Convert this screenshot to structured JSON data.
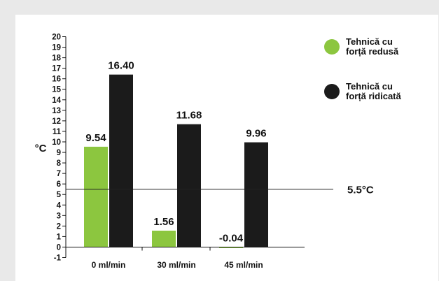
{
  "chart_data": {
    "type": "bar",
    "categories": [
      "0 ml/min",
      "30 ml/min",
      "45 ml/min"
    ],
    "series": [
      {
        "name": "Tehnică cu forță redusă",
        "legend_lines": [
          "Tehnică cu",
          "forță redusă"
        ],
        "values": [
          9.54,
          1.56,
          -0.04
        ],
        "value_labels": [
          "9.54",
          "1.56",
          "-0.04"
        ],
        "color": "#8cc63f"
      },
      {
        "name": "Tehnică cu forță ridicată",
        "legend_lines": [
          "Tehnică cu",
          "forță ridicată"
        ],
        "values": [
          16.4,
          11.68,
          9.96
        ],
        "value_labels": [
          "16.40",
          "11.68",
          "9.96"
        ],
        "color": "#1b1b1b"
      }
    ],
    "ylabel": "°C",
    "ylim": [
      -1,
      20
    ],
    "yticks": [
      -1,
      0,
      1,
      2,
      3,
      4,
      5,
      6,
      7,
      8,
      9,
      10,
      11,
      12,
      13,
      14,
      15,
      16,
      17,
      18,
      19,
      20
    ],
    "reference_line": {
      "value": 5.5,
      "label": "5.5°C"
    },
    "legend_position": "top-right",
    "grid": false
  }
}
